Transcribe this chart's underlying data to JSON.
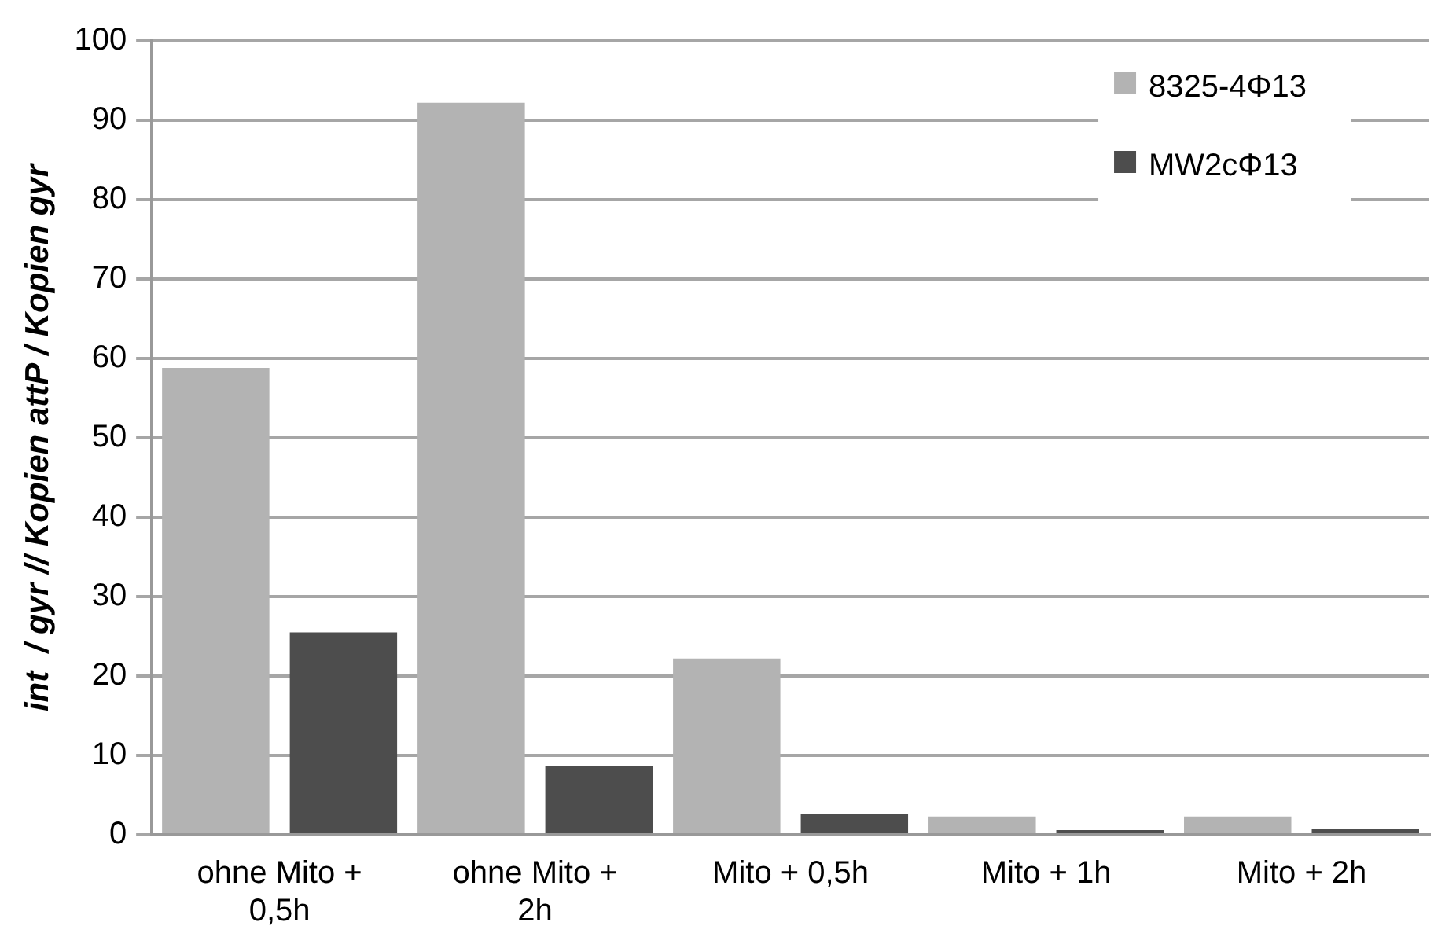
{
  "chart_data": {
    "type": "bar",
    "ylabel": "int  / gyr // Kopien attP / Kopien gyr",
    "categories": [
      "ohne Mito + 0,5h",
      "ohne Mito + 2h",
      "Mito + 0,5h",
      "Mito + 1h",
      "Mito + 2h"
    ],
    "series": [
      {
        "name": "8325-4Φ13",
        "color": "#b3b3b3",
        "values": [
          58.8,
          92.2,
          22.2,
          2.3,
          2.3
        ]
      },
      {
        "name": "MW2cΦ13",
        "color": "#4d4d4d",
        "values": [
          25.5,
          8.7,
          2.6,
          0.6,
          0.8
        ]
      }
    ],
    "ylim": [
      0,
      100
    ],
    "yticks": [
      0,
      10,
      20,
      30,
      40,
      50,
      60,
      70,
      80,
      90,
      100
    ],
    "grid": "y",
    "legend": "top right"
  }
}
